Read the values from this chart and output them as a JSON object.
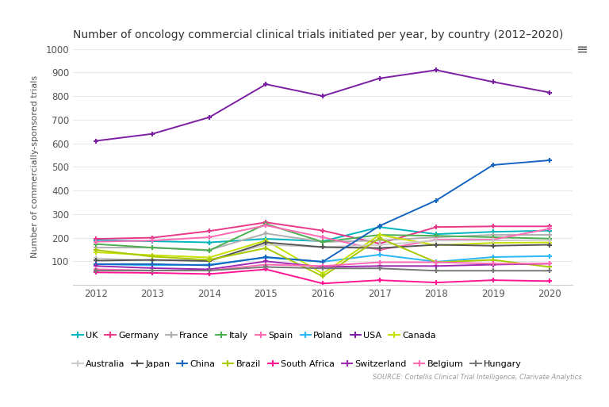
{
  "title": "Number of oncology commercial clinical trials initiated per year, by country (2012–2020)",
  "ylabel": "Number of commercially-sponsored trials",
  "source": "SOURCE: Cortellis Clinical Trial Intelligence, Clarivate Analytics",
  "years": [
    2012,
    2013,
    2014,
    2015,
    2016,
    2017,
    2018,
    2019,
    2020
  ],
  "series": {
    "UK": {
      "color": "#00b5bd",
      "values": [
        190,
        185,
        180,
        195,
        185,
        245,
        215,
        225,
        230
      ]
    },
    "Germany": {
      "color": "#e8388a",
      "values": [
        195,
        200,
        228,
        265,
        230,
        175,
        245,
        248,
        248
      ]
    },
    "France": {
      "color": "#b0b0b0",
      "values": [
        158,
        158,
        148,
        218,
        182,
        188,
        202,
        212,
        212
      ]
    },
    "Italy": {
      "color": "#4caf50",
      "values": [
        173,
        158,
        146,
        258,
        182,
        212,
        208,
        202,
        196
      ]
    },
    "Spain": {
      "color": "#ff69b4",
      "values": [
        183,
        188,
        202,
        252,
        202,
        148,
        192,
        192,
        238
      ]
    },
    "Poland": {
      "color": "#29b6f6",
      "values": [
        88,
        83,
        86,
        116,
        98,
        128,
        98,
        118,
        122
      ]
    },
    "USA": {
      "color": "#7b1fa2",
      "values": [
        610,
        640,
        710,
        850,
        800,
        875,
        910,
        860,
        815
      ]
    },
    "Canada": {
      "color": "#c6e000",
      "values": [
        138,
        126,
        116,
        188,
        48,
        212,
        168,
        178,
        180
      ]
    },
    "Australia": {
      "color": "#cccccc",
      "values": [
        113,
        103,
        106,
        170,
        160,
        170,
        188,
        188,
        190
      ]
    },
    "Japan": {
      "color": "#555555",
      "values": [
        103,
        106,
        101,
        180,
        160,
        156,
        170,
        166,
        170
      ]
    },
    "China": {
      "color": "#1565c0",
      "values": [
        88,
        88,
        83,
        118,
        98,
        250,
        358,
        508,
        528
      ]
    },
    "Brazil": {
      "color": "#aac800",
      "values": [
        148,
        120,
        106,
        156,
        36,
        198,
        96,
        106,
        76
      ]
    },
    "South Africa": {
      "color": "#ff1493",
      "values": [
        53,
        51,
        46,
        66,
        6,
        20,
        10,
        20,
        16
      ]
    },
    "Switzerland": {
      "color": "#9c27b0",
      "values": [
        80,
        71,
        66,
        100,
        76,
        80,
        80,
        86,
        90
      ]
    },
    "Belgium": {
      "color": "#ff69b4",
      "values": [
        66,
        61,
        61,
        86,
        80,
        96,
        96,
        90,
        90
      ]
    },
    "Hungary": {
      "color": "#777777",
      "values": [
        61,
        61,
        61,
        76,
        70,
        70,
        60,
        60,
        60
      ]
    }
  },
  "ylim": [
    0,
    1000
  ],
  "yticks": [
    0,
    100,
    200,
    300,
    400,
    500,
    600,
    700,
    800,
    900,
    1000
  ],
  "background": "#ffffff",
  "grid_color": "#e8e8e8",
  "legend_row1": [
    "UK",
    "Germany",
    "France",
    "Italy",
    "Spain",
    "Poland",
    "USA",
    "Canada"
  ],
  "legend_row2": [
    "Australia",
    "Japan",
    "China",
    "Brazil",
    "South Africa",
    "Switzerland",
    "Belgium",
    "Hungary"
  ]
}
